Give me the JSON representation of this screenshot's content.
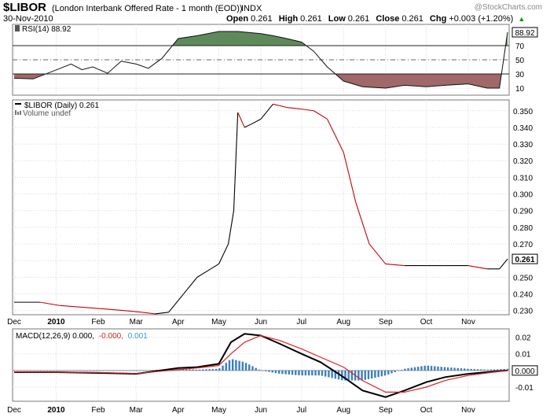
{
  "header": {
    "symbol": "$LIBOR",
    "name": "(London Interbank Offered Rate - 1 month (EOD))",
    "exchange": "INDX",
    "date": "30-Nov-2010",
    "open_label": "Open",
    "open": "0.261",
    "high_label": "High",
    "high": "0.261",
    "low_label": "Low",
    "low": "0.261",
    "close_label": "Close",
    "close": "0.261",
    "chg_label": "Chg",
    "chg": "+0.003 (+1.20%)",
    "chg_arrow": "▲",
    "watermark": "@StockCharts.com"
  },
  "colors": {
    "up": "#000000",
    "down": "#cc0000",
    "rsi_above": "#5e8a5a",
    "rsi_below": "#a06868",
    "macd_hist": "#3a7fc0",
    "signal": "#e02020",
    "grid": "#d8d8d8"
  },
  "chart_data": [
    {
      "type": "area",
      "title": "RSI(14) 88.92",
      "legend_label": "RSI(14) 88.92",
      "ylim": [
        0,
        100
      ],
      "y_ticks": [
        10,
        30,
        50,
        70
      ],
      "reference_lines": [
        30,
        50,
        70
      ],
      "last_value": "88.92",
      "x": [
        "2009-12-01",
        "2009-12-15",
        "2010-01-04",
        "2010-01-12",
        "2010-01-20",
        "2010-01-28",
        "2010-02-08",
        "2010-02-18",
        "2010-03-01",
        "2010-03-10",
        "2010-03-20",
        "2010-04-01",
        "2010-04-15",
        "2010-05-01",
        "2010-05-15",
        "2010-06-01",
        "2010-06-10",
        "2010-06-20",
        "2010-07-01",
        "2010-07-10",
        "2010-07-20",
        "2010-08-01",
        "2010-08-15",
        "2010-09-01",
        "2010-09-15",
        "2010-10-01",
        "2010-10-15",
        "2010-11-01",
        "2010-11-15",
        "2010-11-24",
        "2010-11-30"
      ],
      "values": [
        24,
        23,
        38,
        44,
        36,
        40,
        31,
        48,
        44,
        38,
        52,
        80,
        84,
        90,
        90,
        87,
        84,
        80,
        75,
        62,
        40,
        20,
        12,
        10,
        14,
        12,
        14,
        16,
        10,
        10,
        88.92
      ]
    },
    {
      "type": "line",
      "title": "$LIBOR (Daily) 0.261",
      "legend_label": "$LIBOR (Daily) 0.261",
      "volume_label": "Volume undef",
      "ylim": [
        0.2275,
        0.3565
      ],
      "y_ticks": [
        0.23,
        0.24,
        0.25,
        0.26,
        0.27,
        0.28,
        0.29,
        0.3,
        0.31,
        0.32,
        0.33,
        0.34,
        0.35
      ],
      "x_tick_labels": [
        "Dec",
        "2010",
        "Feb",
        "Mar",
        "Apr",
        "May",
        "Jun",
        "Jul",
        "Aug",
        "Sep",
        "Oct",
        "Nov"
      ],
      "last_value": "0.261",
      "x": [
        "2009-12-01",
        "2009-12-20",
        "2010-01-04",
        "2010-01-20",
        "2010-02-05",
        "2010-02-20",
        "2010-03-05",
        "2010-03-15",
        "2010-03-25",
        "2010-04-05",
        "2010-04-15",
        "2010-04-25",
        "2010-05-01",
        "2010-05-08",
        "2010-05-12",
        "2010-05-15",
        "2010-05-20",
        "2010-05-25",
        "2010-06-01",
        "2010-06-10",
        "2010-06-20",
        "2010-07-01",
        "2010-07-10",
        "2010-07-20",
        "2010-08-01",
        "2010-08-10",
        "2010-08-20",
        "2010-09-01",
        "2010-09-15",
        "2010-10-01",
        "2010-10-15",
        "2010-11-01",
        "2010-11-15",
        "2010-11-24",
        "2010-11-30"
      ],
      "values": [
        0.235,
        0.235,
        0.233,
        0.232,
        0.231,
        0.23,
        0.229,
        0.228,
        0.229,
        0.24,
        0.25,
        0.255,
        0.258,
        0.27,
        0.29,
        0.349,
        0.34,
        0.342,
        0.345,
        0.354,
        0.352,
        0.351,
        0.35,
        0.345,
        0.325,
        0.295,
        0.27,
        0.258,
        0.257,
        0.257,
        0.257,
        0.257,
        0.255,
        0.255,
        0.261
      ]
    },
    {
      "type": "line",
      "title": "MACD(12,26,9) 0.000, -0.000, 0.001",
      "legend": {
        "macd": "MACD(12,26,9) 0.000,",
        "signal": "-0.000,",
        "hist": "0.001"
      },
      "ylim": [
        -0.0185,
        0.025
      ],
      "y_ticks": [
        -0.01,
        0.0,
        0.01,
        0.02
      ],
      "y_tick_labels": [
        "-0.01",
        "0.000",
        "0.01",
        "0.02"
      ],
      "last_value": "0.000",
      "x": [
        "2009-12-01",
        "2010-01-01",
        "2010-02-01",
        "2010-03-01",
        "2010-04-01",
        "2010-04-15",
        "2010-05-01",
        "2010-05-10",
        "2010-05-20",
        "2010-06-01",
        "2010-06-15",
        "2010-07-01",
        "2010-07-15",
        "2010-08-01",
        "2010-08-15",
        "2010-09-01",
        "2010-09-15",
        "2010-10-01",
        "2010-10-15",
        "2010-11-01",
        "2010-11-15",
        "2010-11-30"
      ],
      "series": [
        {
          "name": "MACD(12,26,9)",
          "values": [
            -0.001,
            -0.001,
            -0.0015,
            -0.002,
            0.0015,
            0.002,
            0.004,
            0.017,
            0.022,
            0.021,
            0.016,
            0.01,
            0.005,
            -0.004,
            -0.012,
            -0.016,
            -0.012,
            -0.007,
            -0.004,
            -0.002,
            -0.001,
            0.0
          ]
        },
        {
          "name": "Signal",
          "values": [
            -0.0008,
            -0.001,
            -0.0012,
            -0.0018,
            0.0005,
            0.0015,
            0.003,
            0.01,
            0.017,
            0.021,
            0.018,
            0.013,
            0.008,
            0.002,
            -0.006,
            -0.013,
            -0.013,
            -0.01,
            -0.006,
            -0.003,
            -0.0015,
            0.0
          ]
        },
        {
          "name": "Histogram",
          "values": [
            -0.0002,
            0.0,
            -0.0003,
            -0.0002,
            0.001,
            0.0005,
            0.001,
            0.007,
            0.005,
            0.0,
            -0.002,
            -0.003,
            -0.003,
            -0.006,
            -0.006,
            -0.003,
            0.001,
            0.003,
            0.002,
            0.001,
            0.0005,
            0.001
          ]
        }
      ]
    }
  ]
}
